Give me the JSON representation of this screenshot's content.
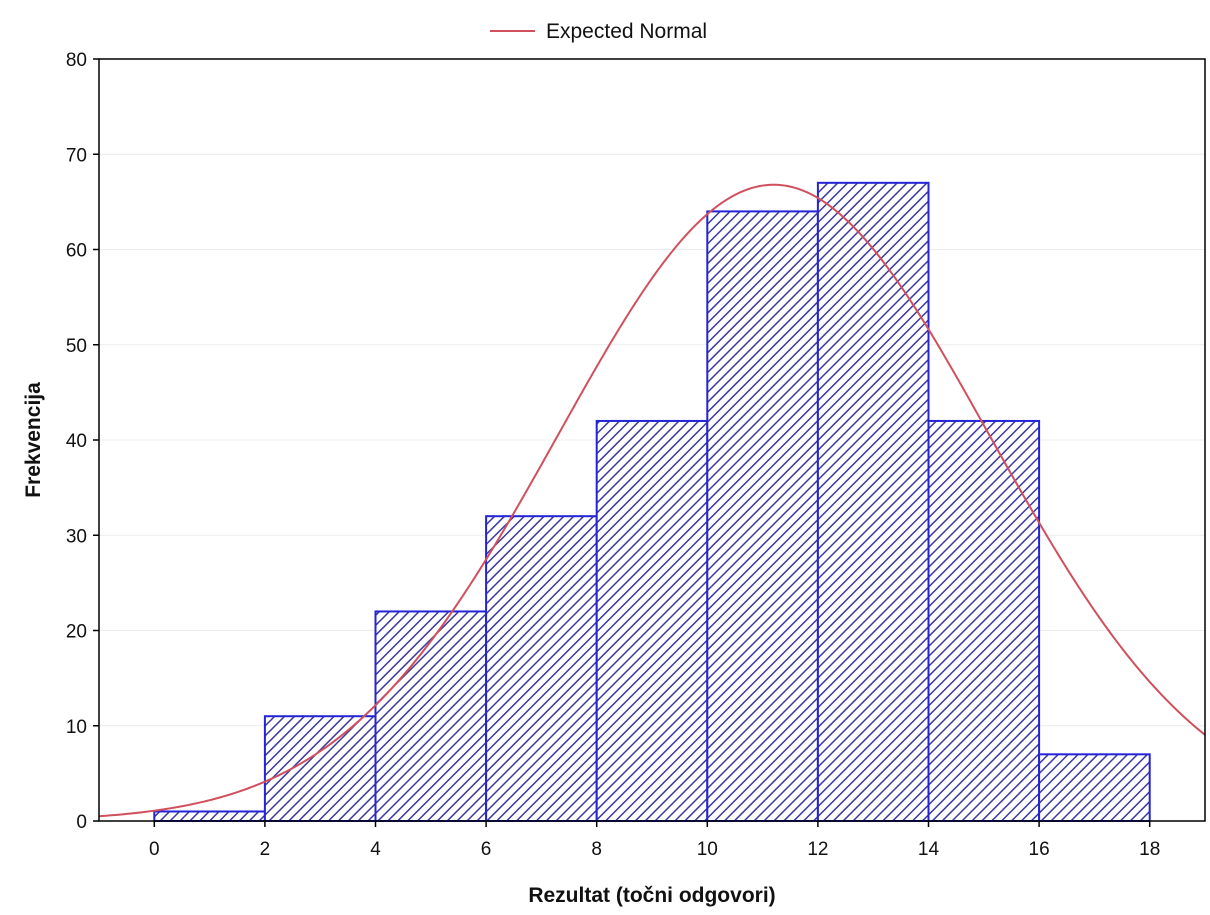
{
  "chart_data": {
    "type": "bar",
    "title": "",
    "xlabel": "Rezultat (točni odgovori)",
    "ylabel": "Frekvencija",
    "bins": [
      {
        "from": 0,
        "to": 2,
        "value": 1
      },
      {
        "from": 2,
        "to": 4,
        "value": 11
      },
      {
        "from": 4,
        "to": 6,
        "value": 22
      },
      {
        "from": 6,
        "to": 8,
        "value": 32
      },
      {
        "from": 8,
        "to": 10,
        "value": 42
      },
      {
        "from": 10,
        "to": 12,
        "value": 64
      },
      {
        "from": 12,
        "to": 14,
        "value": 67
      },
      {
        "from": 14,
        "to": 16,
        "value": 42
      },
      {
        "from": 16,
        "to": 18,
        "value": 7
      }
    ],
    "expected_normal": {
      "name": "Expected Normal",
      "peak_x": 11.2,
      "peak_y": 66.8,
      "sigma": 3.9
    },
    "xlim": [
      -1,
      19
    ],
    "ylim": [
      0,
      80
    ],
    "xticks": [
      "0",
      "2",
      "4",
      "6",
      "8",
      "10",
      "12",
      "14",
      "16",
      "18"
    ],
    "yticks": [
      "0",
      "10",
      "20",
      "30",
      "40",
      "50",
      "60",
      "70",
      "80"
    ],
    "grid": true,
    "legend_position": "top-center",
    "colors": {
      "bar_edge": "#2424d6",
      "bar_hatch": "#3a3aa0",
      "bar_fill": "#ffffff",
      "curve": "#d0505e",
      "axis": "#000000",
      "grid": "#ececec"
    }
  }
}
